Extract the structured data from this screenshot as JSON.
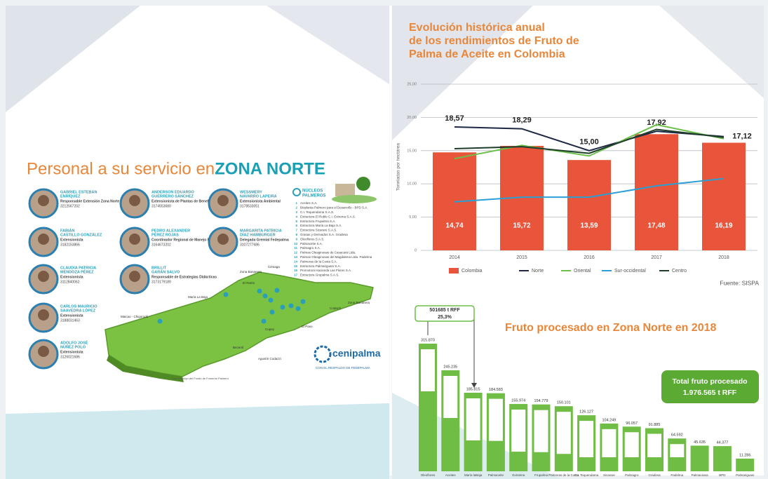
{
  "left": {
    "title_a": "Personal a su servicio en ",
    "title_b": "ZONA NORTE",
    "people": [
      {
        "name": [
          "GABRIEL ESTEBAN",
          "ENRÍQUEZ"
        ],
        "role": "Responsable Extensión Zona Norte",
        "phone": "3212567202"
      },
      {
        "name": [
          "FABIÁN",
          "CASTILLO GONZÁLEZ"
        ],
        "role": "Extensionista",
        "phone": "3182153866"
      },
      {
        "name": [
          "CLAUDIA PATRICIA",
          "MENDOZA PÉREZ"
        ],
        "role": "Extensionista",
        "phone": "3112840062"
      },
      {
        "name": [
          "CARLOS MAURICIO",
          "SAAVEDRA LÓPEZ"
        ],
        "role": "Extensionista",
        "phone": "3188031463"
      },
      {
        "name": [
          "ADOLFO JOSÉ",
          "NÚÑEZ POLO"
        ],
        "role": "Extensionista",
        "phone": "3126021686"
      },
      {
        "name": [
          "ANDERSON EDUARDO",
          "GUERRERO SÁNCHEZ"
        ],
        "role": "Extensionista de Plantas de Beneficio",
        "phone": "3174553680"
      },
      {
        "name": [
          "PEDRO ALEXANDER",
          "PÉREZ ROJAS"
        ],
        "role": "Coordinador Regional de Manejo Fitosanitario",
        "phone": "3164673202"
      },
      {
        "name": [
          "BRILLIT",
          "GARÁN SALVO"
        ],
        "role": "Responsable de Estrategias Didácticas",
        "phone": "3173179189"
      },
      {
        "name": [
          "WESSMERY",
          "NAVARRO LAPEIRA"
        ],
        "role": "Extensionista Ambiental",
        "phone": "3178533051"
      },
      {
        "name": [
          "MARGARITA PATRICIA",
          "DÍAZ HAMBURGER"
        ],
        "role": "Delegada Gremial Fedepalma",
        "phone": "3107277686"
      }
    ],
    "nuclei_title": [
      "NÚCLEOS",
      "PALMEROS"
    ],
    "nuclei": [
      {
        "n": 1,
        "name": "Aceites S.A."
      },
      {
        "n": 2,
        "name": "Bioplanta Palmero para el Desarrollo - BPD S.A."
      },
      {
        "n": 3,
        "name": "C.I. Tequendama S.A.S."
      },
      {
        "n": 4,
        "name": "Extractora El Roble C.I. Extrema S.A.S."
      },
      {
        "n": 5,
        "name": "Extractora Frupalma S.A."
      },
      {
        "n": 6,
        "name": "Extractora María La Baja S.A."
      },
      {
        "n": 7,
        "name": "Extractora Sicarare S.A.S."
      },
      {
        "n": 8,
        "name": "Grasas y Derivados S.A. Gradesa"
      },
      {
        "n": 9,
        "name": "Oleoflores S.A.S."
      },
      {
        "n": 10,
        "name": "Palmaceite S.A."
      },
      {
        "n": 11,
        "name": "Palmagro S.A."
      },
      {
        "n": 12,
        "name": "Palmas Oleaginosas de Casacará Ltda."
      },
      {
        "n": 13,
        "name": "Palmas Oleaginosas del Magdalena Ltda. Padelma"
      },
      {
        "n": 14,
        "name": "Palmeras de la Costa S.A."
      },
      {
        "n": 15,
        "name": "Extractora Palmariguani S.A."
      },
      {
        "n": 16,
        "name": "Promotora Hacienda Las Flores S.A."
      },
      {
        "n": 17,
        "name": "Extractora Grupalma S.A.S."
      }
    ],
    "map_labels": [
      "Zona Bananera",
      "Ciénaga",
      "El Retén",
      "María La Baja",
      "Maicao - Chigorodó",
      "Copey",
      "Codazzi",
      "El Paso",
      "Becerril",
      "Agustín Codazzi",
      "Zona Bananera"
    ],
    "logo": "cenipalma",
    "logo_sub": "CON EL RESPALDO DE FEDEPALMA",
    "support": "Con el apoyo del Fondo de Fomento Palmero"
  },
  "chart_data": [
    {
      "type": "combo",
      "title": [
        "Evolución histórica anual",
        "de los rendimientos de Fruto de",
        "Palma de Aceite en Colombia"
      ],
      "y_label": "Toneladas por hectárea",
      "categories": [
        "2014",
        "2015",
        "2016",
        "2017",
        "2018"
      ],
      "ylim": [
        0,
        25
      ],
      "yticks": [
        {
          "value": 0,
          "label": "0"
        },
        {
          "value": 5,
          "label": "5,00"
        },
        {
          "value": 10,
          "label": "10,00"
        },
        {
          "value": 15,
          "label": "15,00"
        },
        {
          "value": 20,
          "label": "20,00"
        },
        {
          "value": 25,
          "label": "25,00"
        }
      ],
      "grid": true,
      "series": [
        {
          "name": "Colombia",
          "kind": "bar",
          "color": "#e8553a",
          "values": [
            14.74,
            15.72,
            13.59,
            17.48,
            16.19
          ],
          "value_labels": [
            "14,74",
            "15,72",
            "13,59",
            "17,48",
            "16,19"
          ]
        },
        {
          "name": "Norte",
          "kind": "line",
          "color": "#1f2844",
          "values": [
            18.57,
            18.29,
            15.0,
            17.92,
            17.12
          ],
          "value_labels": [
            "18,57",
            "18,29",
            "15,00",
            "17,92",
            "17,12"
          ]
        },
        {
          "name": "Oriental",
          "kind": "line",
          "color": "#6cbf4a",
          "values": [
            13.8,
            15.8,
            14.2,
            18.9,
            16.8
          ]
        },
        {
          "name": "Sur-occidental",
          "kind": "line",
          "color": "#2a9fd6",
          "values": [
            7.3,
            8.0,
            8.0,
            9.7,
            10.8
          ]
        },
        {
          "name": "Centro",
          "kind": "line",
          "color": "#1e3d2a",
          "values": [
            15.3,
            15.6,
            14.6,
            18.2,
            17.0
          ]
        }
      ],
      "legend": "bottom",
      "source": "Fuente: SISPA"
    },
    {
      "type": "bar",
      "title": "Fruto procesado en Zona Norte en 2018",
      "categories": [
        "Oleoflores",
        "Aceites",
        "María laBaja",
        "Palmaceite",
        "Extraima",
        "Frupalma",
        "Palmeras de la Costa",
        "C.I. Tequendama",
        "Sicarare",
        "Palmagro",
        "Gradesa",
        "Padelma",
        "Palmaceara",
        "BPD",
        "Palmariguani"
      ],
      "values": [
        315870,
        245235,
        185815,
        184583,
        155974,
        154779,
        150101,
        126127,
        104249,
        96057,
        91885,
        64592,
        45635,
        44377,
        11286
      ],
      "value_labels": [
        "315.870",
        "245.235",
        "185.815",
        "184.583",
        "155.974",
        "154.779",
        "150.101",
        "126.127",
        "104.249",
        "96.057",
        "91.885",
        "64.592",
        "45.635",
        "44.377",
        "11.286"
      ],
      "color": "#6fbd45",
      "annotation": [
        "501685 t RFF",
        "25,3%"
      ],
      "callout": [
        "Total fruto procesado",
        "1.976.565 t RFF"
      ]
    }
  ]
}
